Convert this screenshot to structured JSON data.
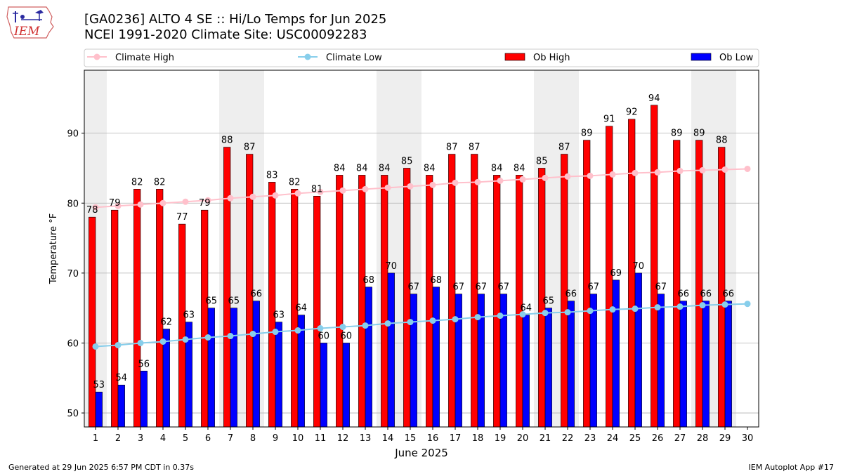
{
  "header": {
    "title_line1": "[GA0236] ALTO 4 SE :: Hi/Lo Temps for Jun 2025",
    "title_line2": "NCEI 1991-2020 Climate Site: USC00092283",
    "logo_text": "IEM"
  },
  "footer": {
    "generated": "Generated at 29 Jun 2025 6:57 PM CDT in 0.37s",
    "app": "IEM Autoplot App #17"
  },
  "colors": {
    "climate_high": "#ffc0cb",
    "climate_low": "#87ceeb",
    "ob_high": "#ff0000",
    "ob_low": "#0000ff",
    "weekend_shade": "#eeeeee",
    "grid": "#b0b0b0"
  },
  "chart_data": {
    "type": "bar",
    "xlabel": "June 2025",
    "ylabel": "Temperature °F",
    "xlim": [
      0.5,
      30.5
    ],
    "ylim": [
      48,
      99
    ],
    "yticks": [
      50,
      60,
      70,
      80,
      90
    ],
    "grid": "horizontal",
    "legend_position": "top",
    "categories": [
      1,
      2,
      3,
      4,
      5,
      6,
      7,
      8,
      9,
      10,
      11,
      12,
      13,
      14,
      15,
      16,
      17,
      18,
      19,
      20,
      21,
      22,
      23,
      24,
      25,
      26,
      27,
      28,
      29,
      30
    ],
    "weekend_days": [
      1,
      7,
      8,
      14,
      15,
      21,
      22,
      28,
      29
    ],
    "series": [
      {
        "name": "Climate High",
        "kind": "line",
        "values": [
          79.4,
          79.6,
          79.8,
          80.0,
          80.2,
          80.4,
          80.7,
          80.9,
          81.1,
          81.4,
          81.6,
          81.8,
          82.0,
          82.2,
          82.4,
          82.6,
          82.9,
          83.0,
          83.2,
          83.4,
          83.6,
          83.8,
          83.9,
          84.1,
          84.3,
          84.4,
          84.6,
          84.7,
          84.8,
          84.9
        ]
      },
      {
        "name": "Climate Low",
        "kind": "line",
        "values": [
          59.5,
          59.7,
          60.0,
          60.2,
          60.5,
          60.8,
          61.0,
          61.3,
          61.6,
          61.8,
          62.1,
          62.3,
          62.5,
          62.8,
          63.0,
          63.2,
          63.4,
          63.7,
          63.9,
          64.1,
          64.3,
          64.4,
          64.6,
          64.8,
          64.9,
          65.1,
          65.2,
          65.4,
          65.5,
          65.6
        ]
      },
      {
        "name": "Ob High",
        "kind": "bar",
        "values": [
          78,
          79,
          82,
          82,
          77,
          79,
          88,
          87,
          83,
          82,
          81,
          84,
          84,
          84,
          85,
          84,
          87,
          87,
          84,
          84,
          85,
          87,
          89,
          91,
          92,
          94,
          89,
          89,
          88,
          null
        ]
      },
      {
        "name": "Ob Low",
        "kind": "bar",
        "values": [
          53,
          54,
          56,
          62,
          63,
          65,
          65,
          66,
          63,
          64,
          60,
          60,
          68,
          70,
          67,
          68,
          67,
          67,
          67,
          64,
          65,
          66,
          67,
          69,
          70,
          67,
          66,
          66,
          66,
          null
        ]
      }
    ]
  }
}
